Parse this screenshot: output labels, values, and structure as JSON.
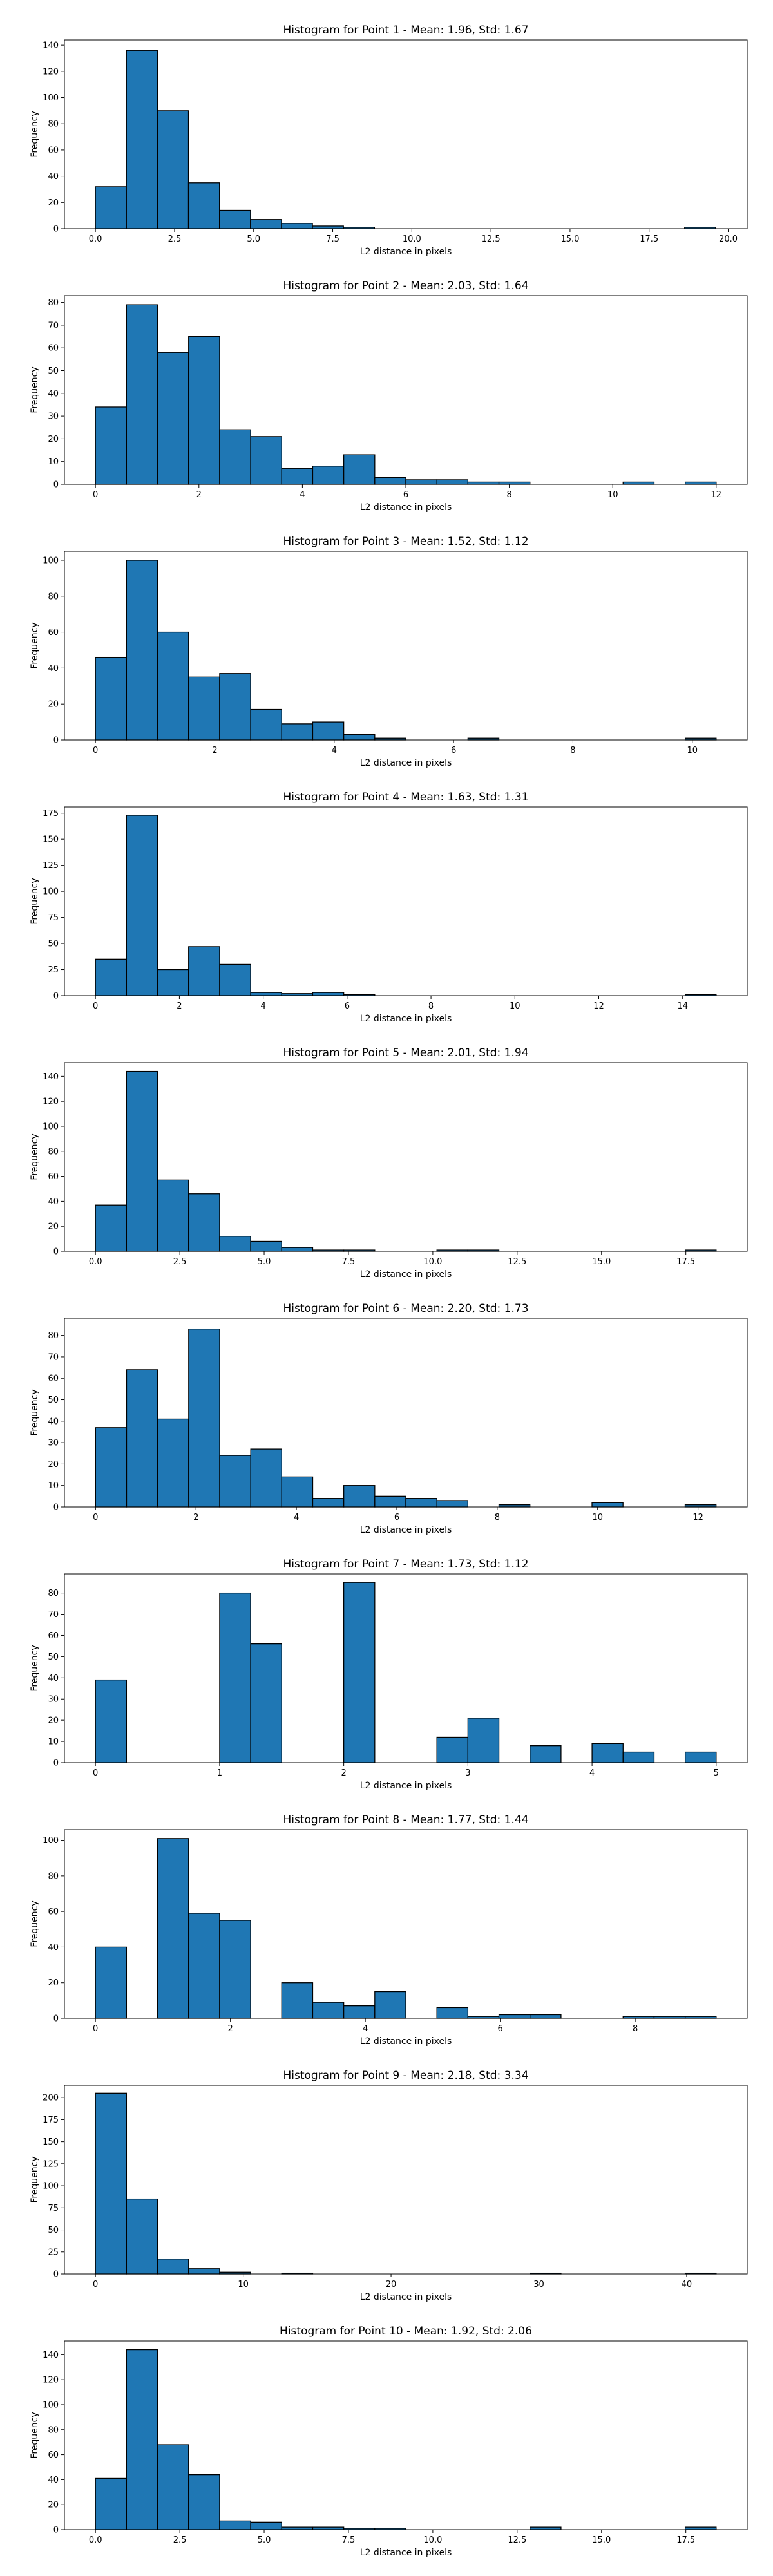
{
  "style": {
    "bar_color": "#1f77b4",
    "edge_color": "#000000"
  },
  "chart_data": [
    {
      "type": "bar",
      "title": "Histogram for Point 1 - Mean: 1.96, Std: 1.67",
      "xlabel": "L2 distance in pixels",
      "ylabel": "Frequency",
      "xlim": [
        -0.98,
        20.6
      ],
      "ylim": [
        0,
        144
      ],
      "xticks": [
        0,
        2.5,
        5,
        7.5,
        10,
        12.5,
        15,
        17.5,
        20
      ],
      "xticklabels": [
        "0.0",
        "2.5",
        "5.0",
        "7.5",
        "10.0",
        "12.5",
        "15.0",
        "17.5",
        "20.0"
      ],
      "yticks": [
        0,
        20,
        40,
        60,
        80,
        100,
        120,
        140
      ],
      "bin_edges": [
        0,
        19.6
      ],
      "bins": 20,
      "values": [
        32,
        136,
        90,
        35,
        14,
        7,
        4,
        2,
        1,
        0,
        0,
        0,
        0,
        0,
        0,
        0,
        0,
        0,
        0,
        1
      ]
    },
    {
      "type": "bar",
      "title": "Histogram for Point 2 - Mean: 2.03, Std: 1.64",
      "xlabel": "L2 distance in pixels",
      "ylabel": "Frequency",
      "xlim": [
        -0.6,
        12.6
      ],
      "ylim": [
        0,
        83
      ],
      "xticks": [
        0,
        2,
        4,
        6,
        8,
        10,
        12
      ],
      "xticklabels": [
        "0",
        "2",
        "4",
        "6",
        "8",
        "10",
        "12"
      ],
      "yticks": [
        0,
        10,
        20,
        30,
        40,
        50,
        60,
        70,
        80
      ],
      "bin_edges": [
        0,
        12.0
      ],
      "bins": 20,
      "values": [
        34,
        79,
        58,
        65,
        24,
        21,
        7,
        8,
        13,
        3,
        2,
        2,
        1,
        1,
        0,
        0,
        0,
        1,
        0,
        1
      ]
    },
    {
      "type": "bar",
      "title": "Histogram for Point 3 - Mean: 1.52, Std: 1.12",
      "xlabel": "L2 distance in pixels",
      "ylabel": "Frequency",
      "xlim": [
        -0.52,
        10.92
      ],
      "ylim": [
        0,
        105
      ],
      "xticks": [
        0,
        2,
        4,
        6,
        8,
        10
      ],
      "xticklabels": [
        "0",
        "2",
        "4",
        "6",
        "8",
        "10"
      ],
      "yticks": [
        0,
        20,
        40,
        60,
        80,
        100
      ],
      "bin_edges": [
        0,
        10.4
      ],
      "bins": 20,
      "values": [
        46,
        100,
        60,
        35,
        37,
        17,
        9,
        10,
        3,
        1,
        0,
        0,
        1,
        0,
        0,
        0,
        0,
        0,
        0,
        1
      ]
    },
    {
      "type": "bar",
      "title": "Histogram for Point 4 - Mean: 1.63, Std: 1.31",
      "xlabel": "L2 distance in pixels",
      "ylabel": "Frequency",
      "xlim": [
        -0.74,
        15.54
      ],
      "ylim": [
        0,
        181
      ],
      "xticks": [
        0,
        2,
        4,
        6,
        8,
        10,
        12,
        14
      ],
      "xticklabels": [
        "0",
        "2",
        "4",
        "6",
        "8",
        "10",
        "12",
        "14"
      ],
      "yticks": [
        0,
        25,
        50,
        75,
        100,
        125,
        150,
        175
      ],
      "bin_edges": [
        0,
        14.8
      ],
      "bins": 20,
      "values": [
        35,
        173,
        25,
        47,
        30,
        3,
        2,
        3,
        1,
        0,
        0,
        0,
        0,
        0,
        0,
        0,
        0,
        0,
        0,
        1
      ]
    },
    {
      "type": "bar",
      "title": "Histogram for Point 5 - Mean: 2.01, Std: 1.94",
      "xlabel": "L2 distance in pixels",
      "ylabel": "Frequency",
      "xlim": [
        -0.92,
        19.32
      ],
      "ylim": [
        0,
        151
      ],
      "xticks": [
        0,
        2.5,
        5,
        7.5,
        10,
        12.5,
        15,
        17.5
      ],
      "xticklabels": [
        "0.0",
        "2.5",
        "5.0",
        "7.5",
        "10.0",
        "12.5",
        "15.0",
        "17.5"
      ],
      "yticks": [
        0,
        20,
        40,
        60,
        80,
        100,
        120,
        140
      ],
      "bin_edges": [
        0,
        18.4
      ],
      "bins": 20,
      "values": [
        37,
        144,
        57,
        46,
        12,
        8,
        3,
        1,
        1,
        0,
        0,
        1,
        1,
        0,
        0,
        0,
        0,
        0,
        0,
        1
      ]
    },
    {
      "type": "bar",
      "title": "Histogram for Point 6 - Mean: 2.20, Std: 1.73",
      "xlabel": "L2 distance in pixels",
      "ylabel": "Frequency",
      "xlim": [
        -0.62,
        12.98
      ],
      "ylim": [
        0,
        88
      ],
      "xticks": [
        0,
        2,
        4,
        6,
        8,
        10,
        12
      ],
      "xticklabels": [
        "0",
        "2",
        "4",
        "6",
        "8",
        "10",
        "12"
      ],
      "yticks": [
        0,
        10,
        20,
        30,
        40,
        50,
        60,
        70,
        80
      ],
      "bin_edges": [
        0,
        12.36
      ],
      "bins": 20,
      "values": [
        37,
        64,
        41,
        83,
        24,
        27,
        14,
        4,
        10,
        5,
        4,
        3,
        0,
        1,
        0,
        0,
        2,
        0,
        0,
        1
      ]
    },
    {
      "type": "bar",
      "title": "Histogram for Point 7 - Mean: 1.73, Std: 1.12",
      "xlabel": "L2 distance in pixels",
      "ylabel": "Frequency",
      "xlim": [
        -0.25,
        5.25
      ],
      "ylim": [
        0,
        89
      ],
      "xticks": [
        0,
        1,
        2,
        3,
        4,
        5
      ],
      "xticklabels": [
        "0",
        "1",
        "2",
        "3",
        "4",
        "5"
      ],
      "yticks": [
        0,
        10,
        20,
        30,
        40,
        50,
        60,
        70,
        80
      ],
      "bin_edges": [
        0,
        5.0
      ],
      "bins": 20,
      "values": [
        39,
        0,
        0,
        0,
        80,
        56,
        0,
        0,
        85,
        0,
        0,
        12,
        21,
        0,
        8,
        0,
        9,
        5,
        0,
        5
      ]
    },
    {
      "type": "bar",
      "title": "Histogram for Point 8 - Mean: 1.77, Std: 1.44",
      "xlabel": "L2 distance in pixels",
      "ylabel": "Frequency",
      "xlim": [
        -0.46,
        9.66
      ],
      "ylim": [
        0,
        106
      ],
      "xticks": [
        0,
        2,
        4,
        6,
        8
      ],
      "xticklabels": [
        "0",
        "2",
        "4",
        "6",
        "8"
      ],
      "yticks": [
        0,
        20,
        40,
        60,
        80,
        100
      ],
      "bin_edges": [
        0,
        9.2
      ],
      "bins": 20,
      "values": [
        40,
        0,
        101,
        59,
        55,
        0,
        20,
        9,
        7,
        15,
        0,
        6,
        1,
        2,
        2,
        0,
        0,
        1,
        1,
        1
      ]
    },
    {
      "type": "bar",
      "title": "Histogram for Point 9 - Mean: 2.18, Std: 3.34",
      "xlabel": "L2 distance in pixels",
      "ylabel": "Frequency",
      "xlim": [
        -2.1,
        44.1
      ],
      "ylim": [
        0,
        214
      ],
      "xticks": [
        0,
        10,
        20,
        30,
        40
      ],
      "xticklabels": [
        "0",
        "10",
        "20",
        "30",
        "40"
      ],
      "yticks": [
        0,
        25,
        50,
        75,
        100,
        125,
        150,
        175,
        200
      ],
      "bin_edges": [
        0,
        42.0
      ],
      "bins": 20,
      "values": [
        205,
        85,
        17,
        6,
        2,
        0,
        1,
        0,
        0,
        0,
        0,
        0,
        0,
        0,
        1,
        0,
        0,
        0,
        0,
        1
      ]
    },
    {
      "type": "bar",
      "title": "Histogram for Point 10 - Mean: 1.92, Std: 2.06",
      "xlabel": "L2 distance in pixels",
      "ylabel": "Frequency",
      "xlim": [
        -0.92,
        19.32
      ],
      "ylim": [
        0,
        151
      ],
      "xticks": [
        0,
        2.5,
        5,
        7.5,
        10,
        12.5,
        15,
        17.5
      ],
      "xticklabels": [
        "0.0",
        "2.5",
        "5.0",
        "7.5",
        "10.0",
        "12.5",
        "15.0",
        "17.5"
      ],
      "yticks": [
        0,
        20,
        40,
        60,
        80,
        100,
        120,
        140
      ],
      "bin_edges": [
        0,
        18.4
      ],
      "bins": 20,
      "values": [
        41,
        144,
        68,
        44,
        7,
        6,
        2,
        2,
        1,
        1,
        0,
        0,
        0,
        0,
        2,
        0,
        0,
        0,
        0,
        2
      ]
    }
  ]
}
